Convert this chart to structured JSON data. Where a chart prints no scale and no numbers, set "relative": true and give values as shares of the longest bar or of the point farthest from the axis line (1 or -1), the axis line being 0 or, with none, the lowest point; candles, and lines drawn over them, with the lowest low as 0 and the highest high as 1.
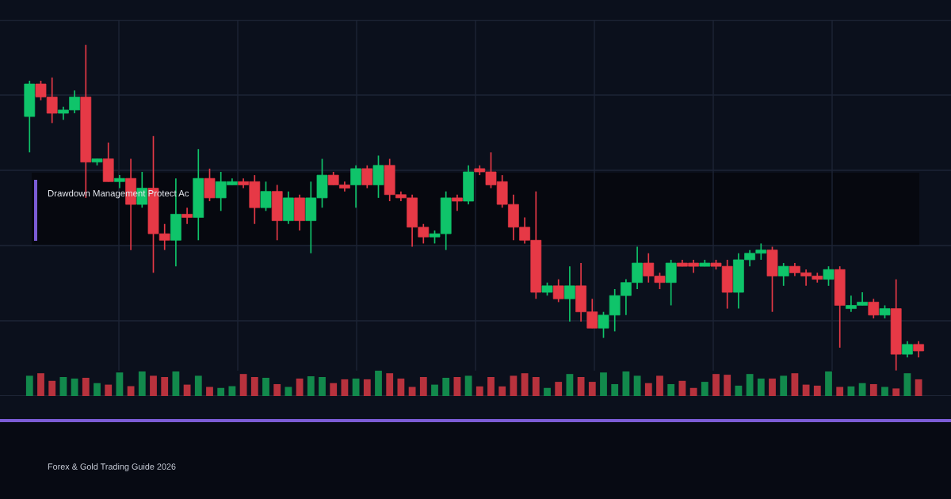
{
  "chart_data": [
    {
      "type": "candlestick",
      "relative": true,
      "grid": true,
      "categories": [
        null,
        null,
        null,
        null,
        null,
        null,
        null,
        null,
        null,
        null,
        null,
        null,
        null,
        null,
        null,
        null,
        null,
        null,
        null,
        null,
        null,
        null,
        null,
        null,
        null,
        null,
        null,
        null,
        null,
        null,
        null,
        null,
        null,
        null,
        null,
        null,
        null,
        null,
        null,
        null,
        null,
        null,
        null,
        null,
        null,
        null,
        null,
        null,
        null,
        null,
        null,
        null,
        null,
        null,
        null,
        null,
        null,
        null,
        null,
        null,
        null,
        null,
        null,
        null,
        null,
        null,
        null,
        null,
        null,
        null,
        null,
        null,
        null,
        null,
        null,
        null,
        null,
        null,
        null,
        null
      ],
      "ohlc": [
        [
          0.78,
          0.89,
          0.67,
          0.88
        ],
        [
          0.88,
          0.89,
          0.83,
          0.84
        ],
        [
          0.84,
          0.9,
          0.76,
          0.79
        ],
        [
          0.79,
          0.81,
          0.77,
          0.8
        ],
        [
          0.8,
          0.86,
          0.79,
          0.84
        ],
        [
          0.84,
          1,
          0.53,
          0.64
        ],
        [
          0.64,
          0.65,
          0.63,
          0.65
        ],
        [
          0.65,
          0.7,
          0.58,
          0.58
        ],
        [
          0.58,
          0.6,
          0.56,
          0.59
        ],
        [
          0.59,
          0.65,
          0.37,
          0.51
        ],
        [
          0.51,
          0.61,
          0.5,
          0.56
        ],
        [
          0.56,
          0.72,
          0.3,
          0.42
        ],
        [
          0.42,
          0.45,
          0.37,
          0.4
        ],
        [
          0.4,
          0.59,
          0.32,
          0.48
        ],
        [
          0.48,
          0.5,
          0.45,
          0.47
        ],
        [
          0.47,
          0.68,
          0.4,
          0.59
        ],
        [
          0.59,
          0.62,
          0.52,
          0.53
        ],
        [
          0.53,
          0.61,
          0.49,
          0.58
        ],
        [
          0.57,
          0.59,
          0.57,
          0.58
        ],
        [
          0.58,
          0.59,
          0.56,
          0.57
        ],
        [
          0.58,
          0.6,
          0.45,
          0.5
        ],
        [
          0.5,
          0.58,
          0.49,
          0.55
        ],
        [
          0.55,
          0.57,
          0.4,
          0.46
        ],
        [
          0.46,
          0.55,
          0.45,
          0.53
        ],
        [
          0.53,
          0.54,
          0.43,
          0.46
        ],
        [
          0.46,
          0.58,
          0.36,
          0.53
        ],
        [
          0.53,
          0.65,
          0.5,
          0.6
        ],
        [
          0.6,
          0.61,
          0.57,
          0.57
        ],
        [
          0.57,
          0.58,
          0.55,
          0.56
        ],
        [
          0.57,
          0.63,
          0.5,
          0.62
        ],
        [
          0.62,
          0.63,
          0.56,
          0.57
        ],
        [
          0.57,
          0.66,
          0.53,
          0.63
        ],
        [
          0.63,
          0.65,
          0.52,
          0.54
        ],
        [
          0.54,
          0.55,
          0.52,
          0.53
        ],
        [
          0.53,
          0.54,
          0.38,
          0.44
        ],
        [
          0.44,
          0.45,
          0.39,
          0.41
        ],
        [
          0.41,
          0.43,
          0.39,
          0.42
        ],
        [
          0.42,
          0.55,
          0.37,
          0.53
        ],
        [
          0.53,
          0.54,
          0.49,
          0.52
        ],
        [
          0.52,
          0.63,
          0.51,
          0.61
        ],
        [
          0.62,
          0.63,
          0.6,
          0.61
        ],
        [
          0.61,
          0.67,
          0.56,
          0.57
        ],
        [
          0.58,
          0.6,
          0.5,
          0.51
        ],
        [
          0.51,
          0.54,
          0.4,
          0.44
        ],
        [
          0.44,
          0.47,
          0.39,
          0.4
        ],
        [
          0.4,
          0.55,
          0.22,
          0.24
        ],
        [
          0.24,
          0.27,
          0.23,
          0.26
        ],
        [
          0.26,
          0.28,
          0.21,
          0.22
        ],
        [
          0.22,
          0.32,
          0.15,
          0.26
        ],
        [
          0.26,
          0.33,
          0.15,
          0.18
        ],
        [
          0.18,
          0.22,
          0.13,
          0.13
        ],
        [
          0.13,
          0.18,
          0.1,
          0.17
        ],
        [
          0.17,
          0.25,
          0.12,
          0.23
        ],
        [
          0.23,
          0.28,
          0.17,
          0.27
        ],
        [
          0.27,
          0.38,
          0.25,
          0.33
        ],
        [
          0.33,
          0.36,
          0.27,
          0.29
        ],
        [
          0.29,
          0.3,
          0.25,
          0.27
        ],
        [
          0.27,
          0.34,
          0.2,
          0.33
        ],
        [
          0.33,
          0.34,
          0.32,
          0.32
        ],
        [
          0.33,
          0.34,
          0.3,
          0.32
        ],
        [
          0.32,
          0.34,
          0.32,
          0.33
        ],
        [
          0.33,
          0.34,
          0.31,
          0.32
        ],
        [
          0.32,
          0.34,
          0.19,
          0.24
        ],
        [
          0.24,
          0.36,
          0.19,
          0.34
        ],
        [
          0.34,
          0.37,
          0.32,
          0.36
        ],
        [
          0.36,
          0.39,
          0.34,
          0.37
        ],
        [
          0.37,
          0.38,
          0.18,
          0.29
        ],
        [
          0.29,
          0.33,
          0.26,
          0.32
        ],
        [
          0.32,
          0.33,
          0.29,
          0.3
        ],
        [
          0.3,
          0.31,
          0.26,
          0.29
        ],
        [
          0.29,
          0.3,
          0.27,
          0.28
        ],
        [
          0.28,
          0.32,
          0.26,
          0.31
        ],
        [
          0.31,
          0.32,
          0.07,
          0.2
        ],
        [
          0.19,
          0.23,
          0.18,
          0.2
        ],
        [
          0.2,
          0.24,
          0.2,
          0.21
        ],
        [
          0.21,
          0.22,
          0.16,
          0.17
        ],
        [
          0.17,
          0.2,
          0.16,
          0.19
        ],
        [
          0.19,
          0.28,
          0,
          0.05
        ],
        [
          0.05,
          0.09,
          0.04,
          0.08
        ],
        [
          0.08,
          0.09,
          0.04,
          0.06
        ]
      ],
      "colors": [
        "#0fc46a",
        "#e63946",
        "#e63946",
        "#0fc46a",
        "#0fc46a",
        "#e63946",
        "#0fc46a",
        "#e63946",
        "#0fc46a",
        "#e63946",
        "#0fc46a",
        "#e63946",
        "#e63946",
        "#0fc46a",
        "#e63946",
        "#0fc46a",
        "#e63946",
        "#0fc46a",
        "#0fc46a",
        "#e63946",
        "#e63946",
        "#0fc46a",
        "#e63946",
        "#0fc46a",
        "#e63946",
        "#0fc46a",
        "#0fc46a",
        "#e63946",
        "#e63946",
        "#0fc46a",
        "#e63946",
        "#0fc46a",
        "#e63946",
        "#e63946",
        "#e63946",
        "#e63946",
        "#0fc46a",
        "#0fc46a",
        "#e63946",
        "#0fc46a",
        "#e63946",
        "#e63946",
        "#e63946",
        "#e63946",
        "#e63946",
        "#e63946",
        "#0fc46a",
        "#e63946",
        "#0fc46a",
        "#e63946",
        "#e63946",
        "#0fc46a",
        "#0fc46a",
        "#0fc46a",
        "#0fc46a",
        "#e63946",
        "#e63946",
        "#0fc46a",
        "#e63946",
        "#e63946",
        "#0fc46a",
        "#e63946",
        "#e63946",
        "#0fc46a",
        "#0fc46a",
        "#0fc46a",
        "#e63946",
        "#0fc46a",
        "#e63946",
        "#e63946",
        "#e63946",
        "#0fc46a",
        "#e63946",
        "#0fc46a",
        "#0fc46a",
        "#e63946",
        "#0fc46a",
        "#e63946",
        "#0fc46a",
        "#e63946"
      ],
      "annotations": [
        "Drawdown Management Protect Ac",
        "Forex & Gold Trading Guide 2026"
      ]
    },
    {
      "type": "bar",
      "relative": true,
      "categories": [
        null,
        null,
        null,
        null,
        null,
        null,
        null,
        null,
        null,
        null,
        null,
        null,
        null,
        null,
        null,
        null,
        null,
        null,
        null,
        null,
        null,
        null,
        null,
        null,
        null,
        null,
        null,
        null,
        null,
        null,
        null,
        null,
        null,
        null,
        null,
        null,
        null,
        null,
        null,
        null,
        null,
        null,
        null,
        null,
        null,
        null,
        null,
        null,
        null,
        null,
        null,
        null,
        null,
        null,
        null,
        null,
        null,
        null,
        null,
        null,
        null,
        null,
        null,
        null,
        null,
        null,
        null,
        null,
        null,
        null,
        null,
        null,
        null,
        null,
        null,
        null,
        null,
        null,
        null,
        null
      ],
      "values": [
        0.8,
        0.9,
        0.6,
        0.75,
        0.69,
        0.72,
        0.51,
        0.45,
        0.93,
        0.39,
        0.97,
        0.8,
        0.75,
        0.97,
        0.45,
        0.8,
        0.36,
        0.32,
        0.39,
        0.87,
        0.75,
        0.72,
        0.47,
        0.36,
        0.69,
        0.78,
        0.75,
        0.51,
        0.66,
        0.69,
        0.66,
        1,
        0.9,
        0.69,
        0.36,
        0.75,
        0.45,
        0.72,
        0.75,
        0.8,
        0.38,
        0.75,
        0.38,
        0.8,
        0.9,
        0.75,
        0.32,
        0.56,
        0.87,
        0.75,
        0.56,
        0.93,
        0.47,
        0.97,
        0.8,
        0.51,
        0.8,
        0.47,
        0.6,
        0.32,
        0.56,
        0.87,
        0.84,
        0.41,
        0.87,
        0.69,
        0.69,
        0.8,
        0.9,
        0.45,
        0.41,
        0.97,
        0.36,
        0.38,
        0.51,
        0.47,
        0.36,
        0.3,
        0.9,
        0.66
      ],
      "colors": [
        "#12894c",
        "#b8323d",
        "#b8323d",
        "#12894c",
        "#12894c",
        "#b8323d",
        "#12894c",
        "#b8323d",
        "#12894c",
        "#b8323d",
        "#12894c",
        "#b8323d",
        "#b8323d",
        "#12894c",
        "#b8323d",
        "#12894c",
        "#b8323d",
        "#12894c",
        "#12894c",
        "#b8323d",
        "#b8323d",
        "#12894c",
        "#b8323d",
        "#12894c",
        "#b8323d",
        "#12894c",
        "#12894c",
        "#b8323d",
        "#b8323d",
        "#12894c",
        "#b8323d",
        "#12894c",
        "#b8323d",
        "#b8323d",
        "#b8323d",
        "#b8323d",
        "#12894c",
        "#12894c",
        "#b8323d",
        "#12894c",
        "#b8323d",
        "#b8323d",
        "#b8323d",
        "#b8323d",
        "#b8323d",
        "#b8323d",
        "#12894c",
        "#b8323d",
        "#12894c",
        "#b8323d",
        "#b8323d",
        "#12894c",
        "#12894c",
        "#12894c",
        "#12894c",
        "#b8323d",
        "#b8323d",
        "#12894c",
        "#b8323d",
        "#b8323d",
        "#12894c",
        "#b8323d",
        "#b8323d",
        "#12894c",
        "#12894c",
        "#12894c",
        "#b8323d",
        "#12894c",
        "#b8323d",
        "#b8323d",
        "#b8323d",
        "#12894c",
        "#b8323d",
        "#12894c",
        "#12894c",
        "#b8323d",
        "#12894c",
        "#b8323d",
        "#12894c",
        "#b8323d"
      ]
    }
  ]
}
